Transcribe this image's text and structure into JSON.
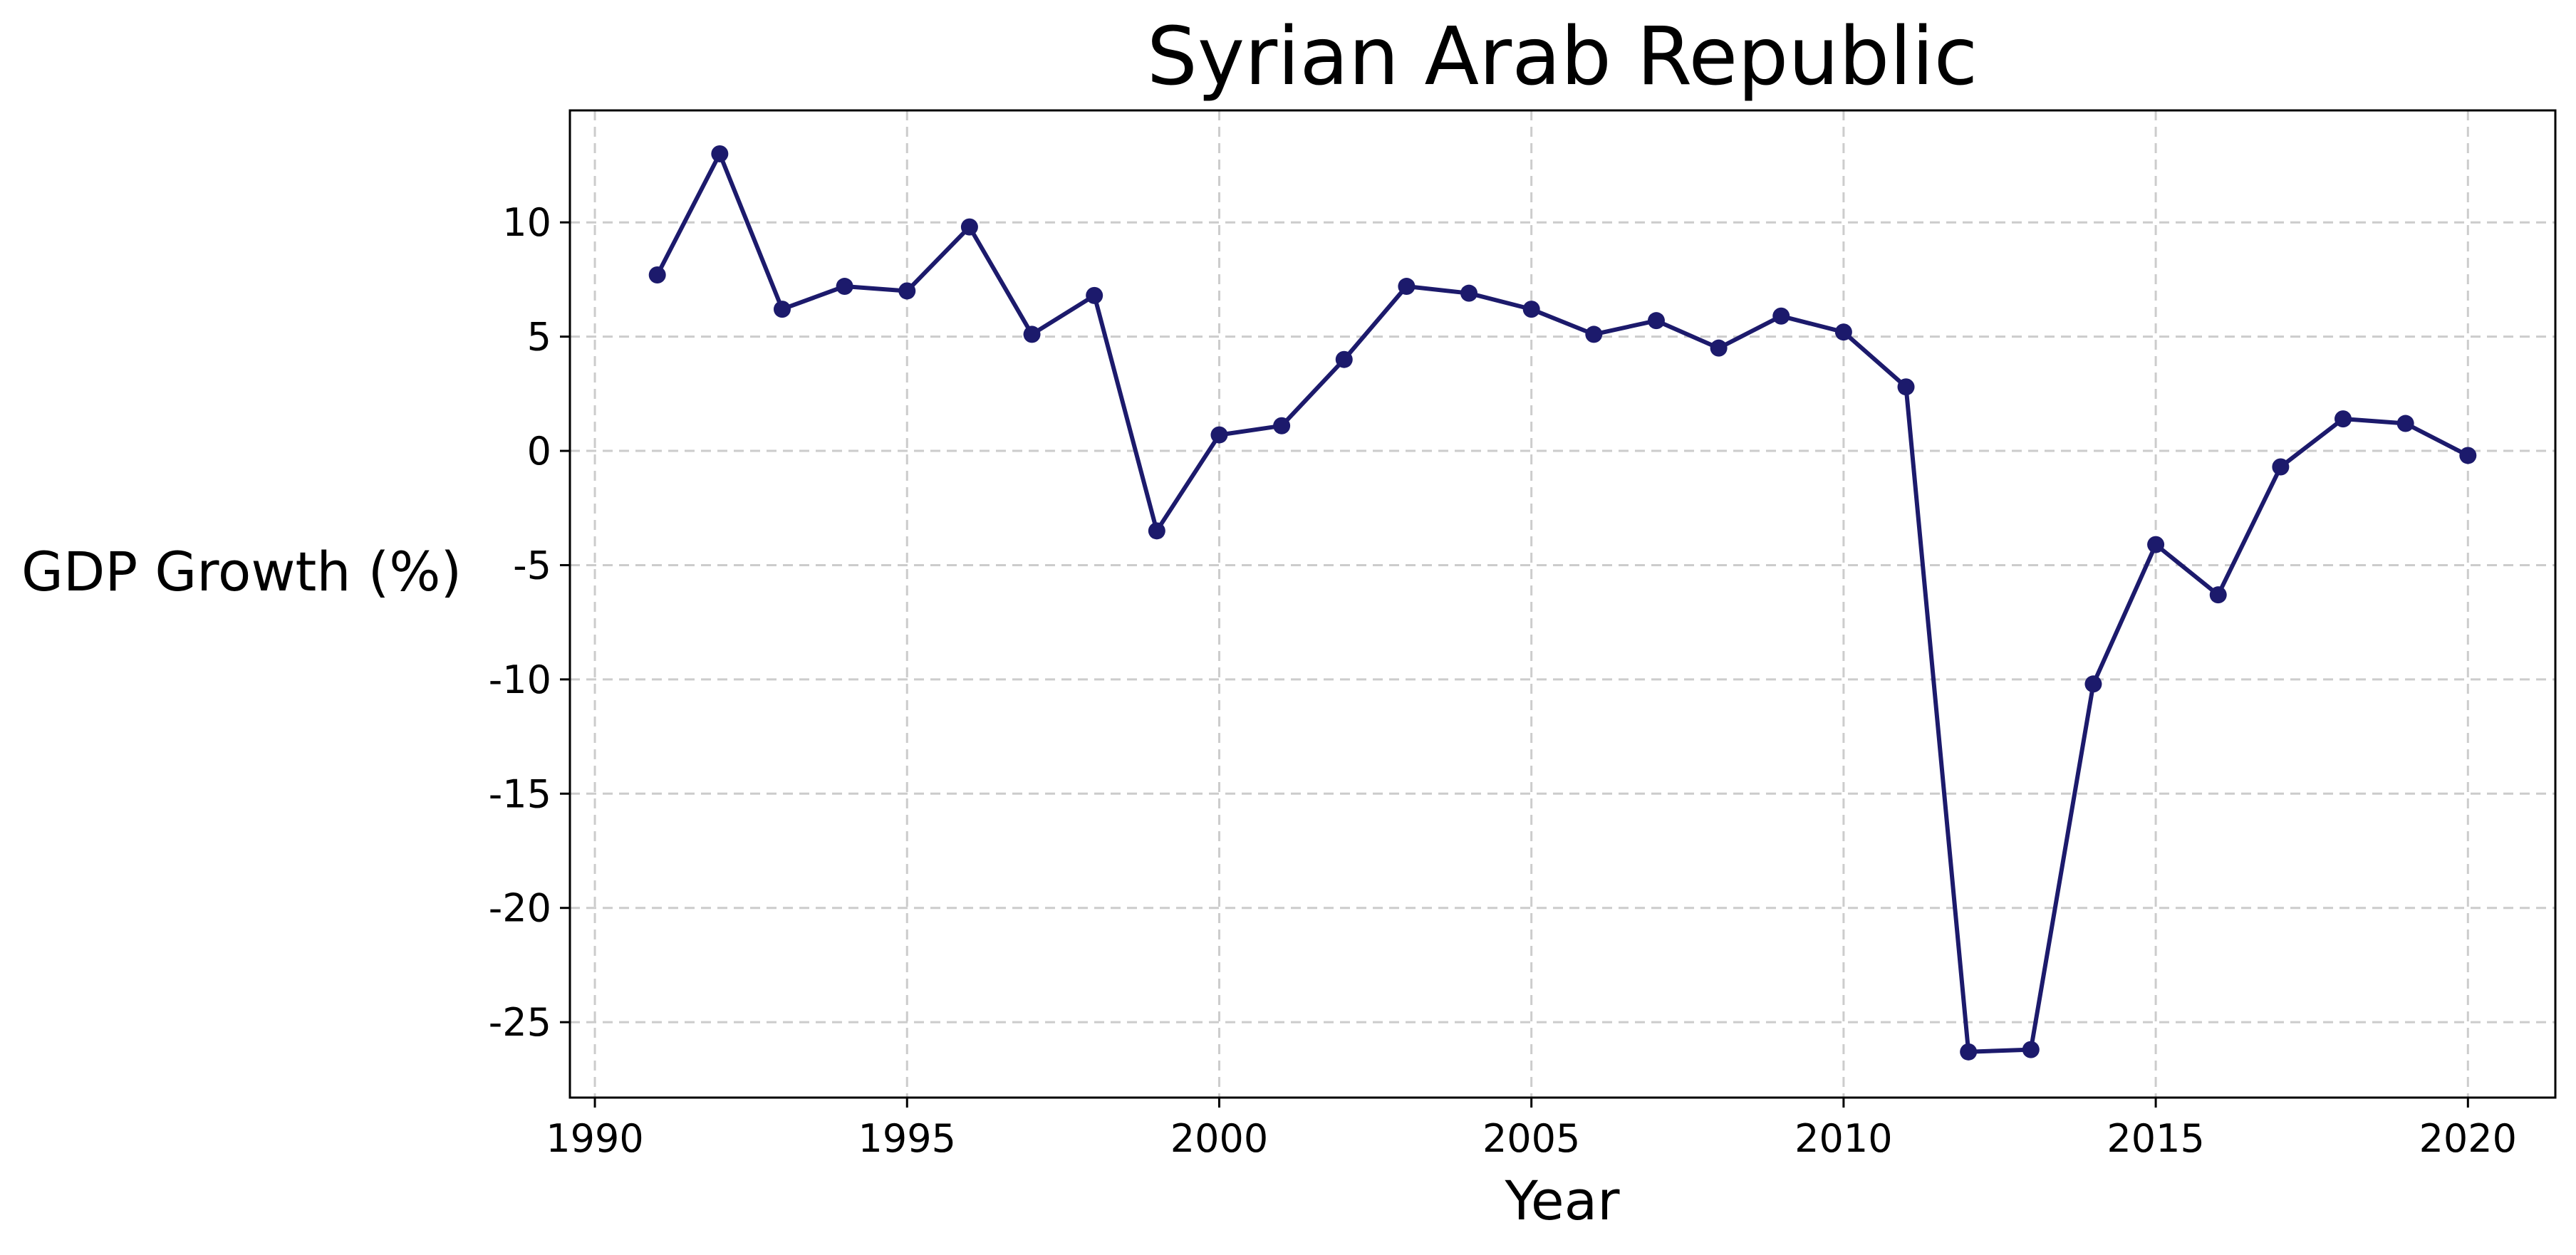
{
  "chart_data": {
    "type": "line",
    "title": "Syrian Arab Republic",
    "xlabel": "Year",
    "ylabel": "GDP Growth (%)",
    "xlim": [
      1989.6,
      2021.4
    ],
    "ylim": [
      -28.3,
      14.9
    ],
    "xticks": [
      1990,
      1995,
      2000,
      2005,
      2010,
      2015,
      2020
    ],
    "yticks": [
      -25,
      -20,
      -15,
      -10,
      -5,
      0,
      5,
      10
    ],
    "grid": true,
    "legend": "none",
    "series": [
      {
        "color": "#1c1a6c",
        "x": [
          1991,
          1992,
          1993,
          1994,
          1995,
          1996,
          1997,
          1998,
          1999,
          2000,
          2001,
          2002,
          2003,
          2004,
          2005,
          2006,
          2007,
          2008,
          2009,
          2010,
          2011,
          2012,
          2013,
          2014,
          2015,
          2016,
          2017,
          2018,
          2019,
          2020
        ],
        "y": [
          7.7,
          13.0,
          6.2,
          7.2,
          7.0,
          9.8,
          5.1,
          6.8,
          -3.5,
          0.7,
          1.1,
          4.0,
          7.2,
          6.9,
          6.2,
          5.1,
          5.7,
          4.5,
          5.9,
          5.2,
          2.8,
          -26.3,
          -26.2,
          -10.2,
          -4.1,
          -6.3,
          -0.7,
          1.4,
          1.2,
          -0.2
        ]
      }
    ]
  }
}
